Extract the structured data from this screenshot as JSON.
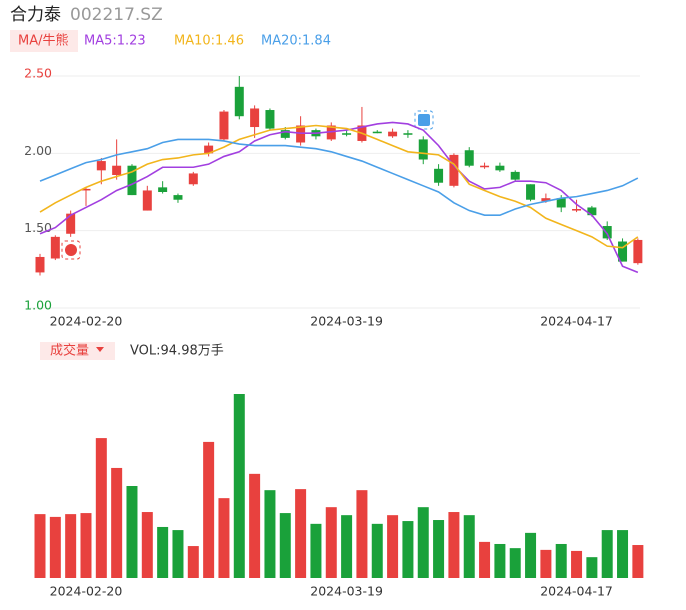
{
  "header": {
    "name": "合力泰",
    "code": "002217.SZ",
    "indicator": "MA/牛熊"
  },
  "chart_data": [
    {
      "type": "candlestick",
      "categories": [
        null,
        null,
        null,
        "2024-02-20",
        null,
        null,
        null,
        null,
        null,
        null,
        null,
        null,
        null,
        null,
        null,
        null,
        null,
        null,
        null,
        null,
        "2024-03-19",
        null,
        null,
        null,
        null,
        null,
        null,
        null,
        null,
        null,
        null,
        null,
        null,
        null,
        null,
        "2024-04-17",
        null,
        null,
        null,
        null
      ],
      "open": [
        1.23,
        1.32,
        1.48,
        1.76,
        1.89,
        1.86,
        1.92,
        1.63,
        1.78,
        1.73,
        1.8,
        2.0,
        2.09,
        2.43,
        2.17,
        2.28,
        2.15,
        2.07,
        2.15,
        2.09,
        2.13,
        2.08,
        2.14,
        2.11,
        2.13,
        2.09,
        1.9,
        1.79,
        2.02,
        1.91,
        1.92,
        1.88,
        1.8,
        1.69,
        1.71,
        1.63,
        1.65,
        1.53,
        1.43,
        1.29
      ],
      "high": [
        1.35,
        1.47,
        1.63,
        1.78,
        1.97,
        2.09,
        1.93,
        1.79,
        1.82,
        1.74,
        1.88,
        2.07,
        2.28,
        2.5,
        2.31,
        2.29,
        2.17,
        2.24,
        2.16,
        2.2,
        2.15,
        2.3,
        2.15,
        2.16,
        2.15,
        2.11,
        1.93,
        2.0,
        2.04,
        1.94,
        1.94,
        1.89,
        1.8,
        1.74,
        1.73,
        1.7,
        1.66,
        1.56,
        1.45,
        1.45
      ],
      "low": [
        1.21,
        1.31,
        1.46,
        1.66,
        1.8,
        1.83,
        1.73,
        1.63,
        1.74,
        1.68,
        1.79,
        1.98,
        2.08,
        2.22,
        2.1,
        2.15,
        2.09,
        2.05,
        2.09,
        2.08,
        2.11,
        2.07,
        2.13,
        2.1,
        2.1,
        1.93,
        1.79,
        1.78,
        1.91,
        1.9,
        1.88,
        1.82,
        1.69,
        1.68,
        1.62,
        1.62,
        1.59,
        1.44,
        1.3,
        1.28
      ],
      "close": [
        1.33,
        1.46,
        1.61,
        1.77,
        1.95,
        1.92,
        1.73,
        1.76,
        1.75,
        1.7,
        1.87,
        2.05,
        2.27,
        2.24,
        2.29,
        2.16,
        2.1,
        2.18,
        2.11,
        2.18,
        2.12,
        2.18,
        2.13,
        2.14,
        2.12,
        1.96,
        1.81,
        1.99,
        1.92,
        1.92,
        1.89,
        1.83,
        1.7,
        1.71,
        1.65,
        1.64,
        1.6,
        1.45,
        1.3,
        1.44
      ],
      "up_color": "#e8413e",
      "down_color": "#1aa13a",
      "series": [
        {
          "name": "MA5:1.23",
          "color": "#a23fe0",
          "values": [
            1.48,
            1.52,
            1.6,
            1.65,
            1.7,
            1.76,
            1.8,
            1.85,
            1.91,
            1.91,
            1.91,
            1.93,
            1.98,
            2.01,
            2.08,
            2.12,
            2.14,
            2.13,
            2.13,
            2.14,
            2.15,
            2.17,
            2.19,
            2.2,
            2.19,
            2.15,
            2.05,
            1.92,
            1.82,
            1.77,
            1.78,
            1.82,
            1.82,
            1.81,
            1.76,
            1.67,
            1.6,
            1.48,
            1.27,
            1.23
          ]
        },
        {
          "name": "MA10:1.46",
          "color": "#f2b51c",
          "values": [
            1.62,
            1.68,
            1.73,
            1.78,
            1.82,
            1.85,
            1.88,
            1.93,
            1.96,
            1.97,
            1.99,
            2.0,
            2.04,
            2.09,
            2.12,
            2.15,
            2.16,
            2.17,
            2.18,
            2.17,
            2.16,
            2.13,
            2.09,
            2.05,
            2.01,
            2.0,
            1.99,
            1.93,
            1.8,
            1.76,
            1.72,
            1.69,
            1.65,
            1.58,
            1.54,
            1.5,
            1.46,
            1.4,
            1.39,
            1.46
          ]
        },
        {
          "name": "MA20:1.84",
          "color": "#4a9fe8",
          "values": [
            1.82,
            1.86,
            1.9,
            1.94,
            1.96,
            1.99,
            2.01,
            2.03,
            2.07,
            2.09,
            2.09,
            2.09,
            2.08,
            2.06,
            2.05,
            2.05,
            2.05,
            2.04,
            2.03,
            2.01,
            1.98,
            1.95,
            1.91,
            1.87,
            1.83,
            1.79,
            1.75,
            1.68,
            1.63,
            1.6,
            1.6,
            1.64,
            1.67,
            1.69,
            1.71,
            1.72,
            1.74,
            1.76,
            1.79,
            1.84
          ]
        }
      ],
      "ylim": [
        1.0,
        2.5
      ],
      "yticks": [
        {
          "value": 2.5,
          "label": "2.50"
        },
        {
          "value": 2.0,
          "label": "2.00"
        },
        {
          "value": 1.5,
          "label": "1.50"
        },
        {
          "value": 1.0,
          "label": "1.00"
        }
      ],
      "grid": true
    },
    {
      "type": "bar",
      "indicator": "成交量",
      "title": "VOL:94.98万手",
      "categories": [
        null,
        null,
        null,
        "2024-02-20",
        null,
        null,
        null,
        null,
        null,
        null,
        null,
        null,
        null,
        null,
        null,
        null,
        null,
        null,
        null,
        null,
        "2024-03-19",
        null,
        null,
        null,
        null,
        null,
        null,
        null,
        null,
        null,
        null,
        null,
        null,
        null,
        null,
        "2024-04-17",
        null,
        null,
        null,
        null
      ],
      "values": [
        184,
        176,
        184,
        187,
        403,
        317,
        265,
        190,
        147,
        138,
        92,
        392,
        230,
        530,
        300,
        253,
        187,
        256,
        156,
        204,
        181,
        253,
        156,
        181,
        164,
        204,
        167,
        190,
        181,
        104,
        98,
        86,
        130,
        81,
        98,
        78,
        60,
        138,
        138,
        94.98
      ]
    }
  ]
}
